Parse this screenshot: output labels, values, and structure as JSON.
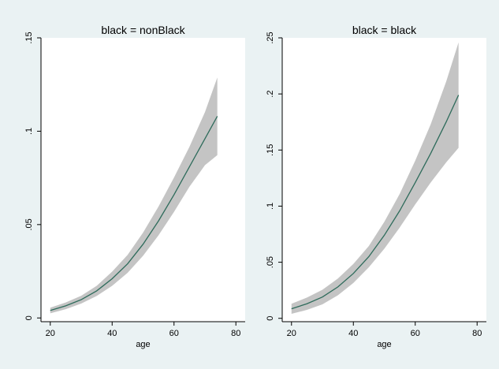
{
  "chart_data": [
    {
      "type": "line",
      "title": "black = nonBlack",
      "xlabel": "age",
      "ylabel": "",
      "xlim": [
        17,
        83
      ],
      "ylim": [
        -0.002,
        0.15
      ],
      "xticks": [
        "20",
        "40",
        "60",
        "80"
      ],
      "yticks": [
        "0",
        ".05",
        ".1",
        ".15"
      ],
      "grid": false,
      "series": [
        {
          "x": [
            20,
            25,
            30,
            35,
            40,
            45,
            50,
            55,
            60,
            65,
            70,
            74
          ],
          "y": [
            0.004,
            0.0065,
            0.0098,
            0.0145,
            0.021,
            0.029,
            0.0395,
            0.052,
            0.066,
            0.081,
            0.096,
            0.108
          ],
          "ci_low": [
            0.0025,
            0.0047,
            0.0077,
            0.0118,
            0.0172,
            0.0242,
            0.0333,
            0.0443,
            0.0568,
            0.0703,
            0.0818,
            0.0872
          ],
          "ci_high": [
            0.0055,
            0.0083,
            0.0119,
            0.0172,
            0.0248,
            0.0338,
            0.0457,
            0.0597,
            0.0752,
            0.0917,
            0.1102,
            0.1288
          ]
        }
      ]
    },
    {
      "type": "line",
      "title": "black = black",
      "xlabel": "age",
      "ylabel": "",
      "xlim": [
        17,
        83
      ],
      "ylim": [
        -0.003,
        0.25
      ],
      "xticks": [
        "20",
        "40",
        "60",
        "80"
      ],
      "yticks": [
        "0",
        ".05",
        ".1",
        ".15",
        ".2",
        ".25"
      ],
      "grid": false,
      "series": [
        {
          "x": [
            20,
            25,
            30,
            35,
            40,
            45,
            50,
            55,
            60,
            65,
            70,
            74
          ],
          "y": [
            0.0085,
            0.013,
            0.019,
            0.028,
            0.04,
            0.055,
            0.074,
            0.096,
            0.121,
            0.147,
            0.175,
            0.199
          ],
          "ci_low": [
            0.004,
            0.0075,
            0.0125,
            0.0205,
            0.0315,
            0.0455,
            0.062,
            0.081,
            0.1015,
            0.121,
            0.139,
            0.152
          ],
          "ci_high": [
            0.013,
            0.0185,
            0.0255,
            0.0355,
            0.0485,
            0.0645,
            0.086,
            0.111,
            0.1405,
            0.173,
            0.211,
            0.246
          ]
        }
      ]
    }
  ],
  "colors": {
    "background": "#eaf2f3",
    "plot_bg": "#ffffff",
    "band": "#c4c4c4",
    "line": "#2e6b5b",
    "axis": "#000000"
  }
}
